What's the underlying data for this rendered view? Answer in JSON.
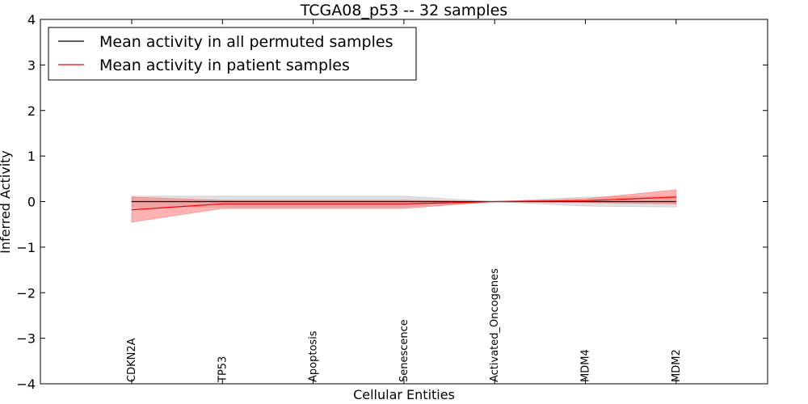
{
  "chart_data": {
    "type": "line",
    "title": "TCGA08_p53 -- 32 samples",
    "xlabel": "Cellular Entities",
    "ylabel": "Inferred Activity",
    "ylim": [
      -4,
      4
    ],
    "yticks": [
      -4,
      -3,
      -2,
      -1,
      0,
      1,
      2,
      3,
      4
    ],
    "ytick_labels": [
      "−4",
      "−3",
      "−2",
      "−1",
      "0",
      "1",
      "2",
      "3",
      "4"
    ],
    "categories": [
      "CDKN2A",
      "TP53",
      "Apoptosis",
      "Senescence",
      "Activated_Oncogenes",
      "MDM4",
      "MDM2"
    ],
    "legend_position": "top-left",
    "series": [
      {
        "name": "Mean activity in all permuted samples",
        "color": "#000000",
        "band_color": "#bbbbbb",
        "values": [
          0.0,
          0.0,
          0.0,
          0.0,
          0.0,
          0.0,
          0.0
        ],
        "upper": [
          0.12,
          0.12,
          0.12,
          0.12,
          0.0,
          0.1,
          0.12
        ],
        "lower": [
          -0.12,
          -0.12,
          -0.12,
          -0.12,
          0.0,
          -0.1,
          -0.12
        ]
      },
      {
        "name": "Mean activity in patient samples",
        "color": "#ff0000",
        "band_color": "#ff6666",
        "values": [
          -0.18,
          -0.05,
          -0.05,
          -0.05,
          0.0,
          0.02,
          0.1
        ],
        "upper": [
          0.1,
          0.03,
          0.03,
          0.03,
          0.0,
          0.06,
          0.26
        ],
        "lower": [
          -0.45,
          -0.15,
          -0.15,
          -0.15,
          0.0,
          -0.02,
          -0.05
        ]
      }
    ]
  }
}
